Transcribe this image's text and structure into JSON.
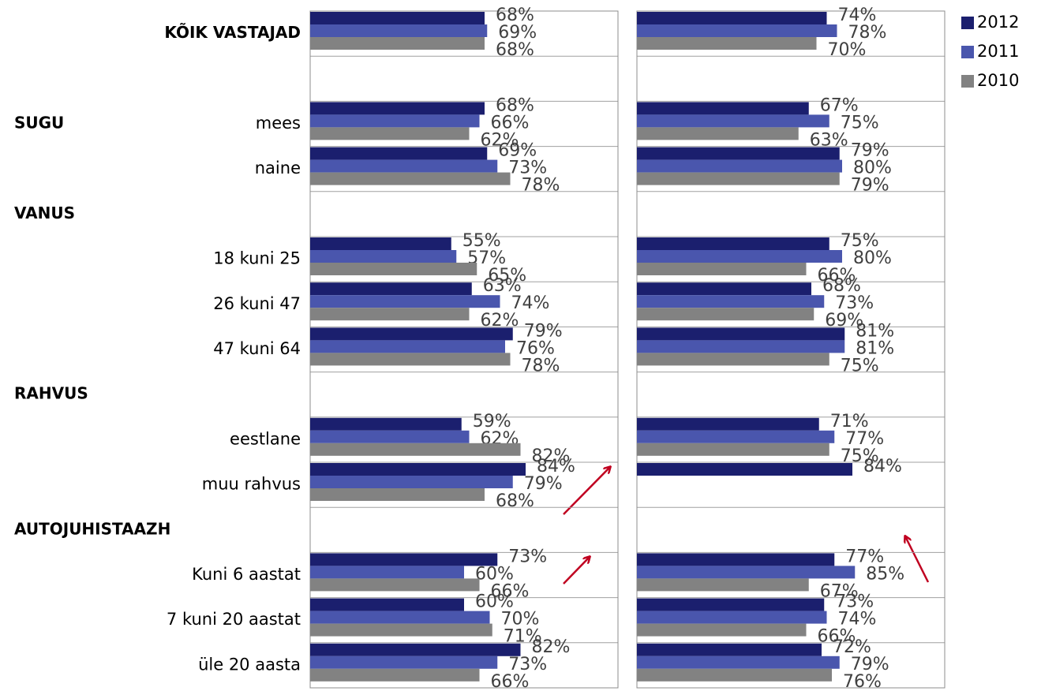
{
  "chart_data": [
    {
      "type": "bar",
      "orientation": "horizontal",
      "categories": [
        "KÕIK VASTAJAD",
        "mees",
        "naine",
        "18 kuni 25",
        "26 kuni 47",
        "47 kuni 64",
        "eestlane",
        "muu rahvus",
        "Kuni 6 aastat",
        "7 kuni 20 aastat",
        "üle 20 aasta"
      ],
      "groups": [
        "SUGU",
        "VANUS",
        "RAHVUS",
        "AUTOJUHISTAAZH"
      ],
      "xlim": [
        0,
        120
      ],
      "legend": "top-right",
      "series": [
        {
          "name": "2012",
          "color": "#1b1f6e",
          "values": [
            68,
            68,
            69,
            55,
            63,
            79,
            59,
            84,
            73,
            60,
            82
          ],
          "value_labels": [
            "68%",
            "68%",
            "69%",
            "55%",
            "63%",
            "79%",
            "59%",
            "84%",
            "73%",
            "60%",
            "82%"
          ]
        },
        {
          "name": "2011",
          "color": "#4a56ad",
          "values": [
            69,
            66,
            73,
            57,
            74,
            76,
            62,
            79,
            60,
            70,
            73
          ],
          "value_labels": [
            "69%",
            "66%",
            "73%",
            "57%",
            "74%",
            "76%",
            "62%",
            "79%",
            "60%",
            "70%",
            "73%"
          ]
        },
        {
          "name": "2010",
          "color": "#828282",
          "values": [
            68,
            62,
            78,
            65,
            62,
            78,
            82,
            68,
            66,
            71,
            66
          ],
          "value_labels": [
            "68%",
            "62%",
            "78%",
            "65%",
            "62%",
            "78%",
            "82%",
            "68%",
            "66%",
            "71%",
            "66%"
          ]
        }
      ]
    },
    {
      "type": "bar",
      "orientation": "horizontal",
      "xlim": [
        0,
        120
      ],
      "series": [
        {
          "color": "#1b1f6e",
          "values": [
            74,
            67,
            79,
            75,
            68,
            81,
            71,
            84,
            77,
            73,
            72
          ],
          "value_labels": [
            "74%",
            "67%",
            "79%",
            "75%",
            "68%",
            "81%",
            "71%",
            "84%",
            "77%",
            "73%",
            "72%"
          ]
        },
        {
          "color": "#4a56ad",
          "values": [
            78,
            75,
            80,
            80,
            73,
            81,
            77,
            null,
            85,
            74,
            79
          ],
          "value_labels": [
            "78%",
            "75%",
            "80%",
            "80%",
            "73%",
            "81%",
            "77%",
            null,
            "85%",
            "74%",
            "79%"
          ]
        },
        {
          "color": "#828282",
          "values": [
            70,
            63,
            79,
            66,
            69,
            75,
            75,
            null,
            67,
            66,
            76
          ],
          "value_labels": [
            "70%",
            "63%",
            "79%",
            "66%",
            "69%",
            "75%",
            "75%",
            null,
            "67%",
            "66%",
            "76%"
          ]
        }
      ]
    }
  ]
}
